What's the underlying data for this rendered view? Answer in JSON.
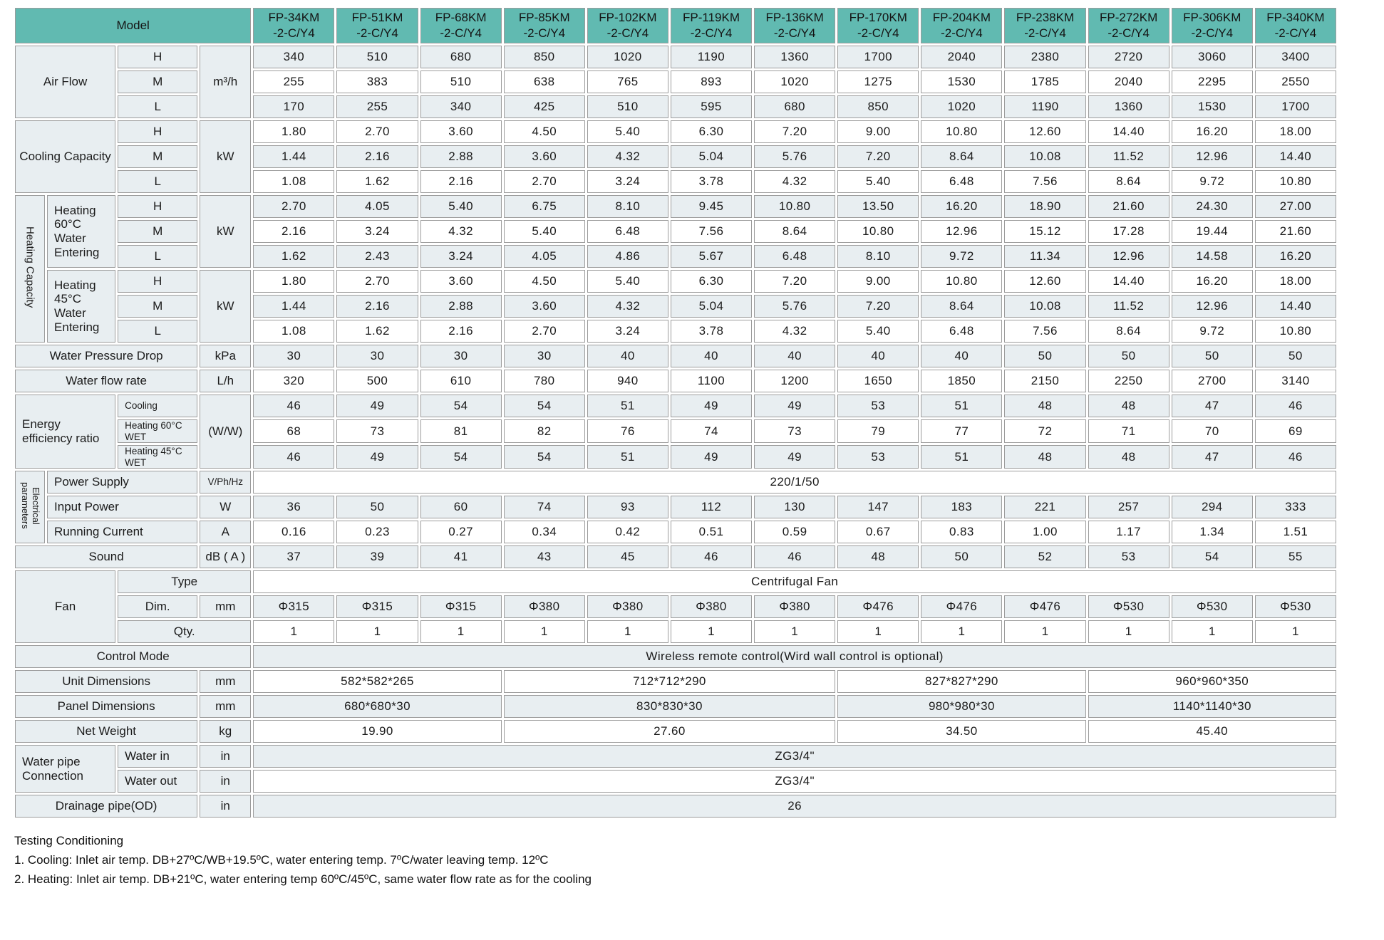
{
  "colors": {
    "header_teal": "#61bab1",
    "row_tint": "#e8eef1",
    "border_gray": "#9c9c9c"
  },
  "header": {
    "model_label": "Model",
    "models": [
      [
        "FP-34KM",
        "-2-C/Y4"
      ],
      [
        "FP-51KM",
        "-2-C/Y4"
      ],
      [
        "FP-68KM",
        "-2-C/Y4"
      ],
      [
        "FP-85KM",
        "-2-C/Y4"
      ],
      [
        "FP-102KM",
        "-2-C/Y4"
      ],
      [
        "FP-119KM",
        "-2-C/Y4"
      ],
      [
        "FP-136KM",
        "-2-C/Y4"
      ],
      [
        "FP-170KM",
        "-2-C/Y4"
      ],
      [
        "FP-204KM",
        "-2-C/Y4"
      ],
      [
        "FP-238KM",
        "-2-C/Y4"
      ],
      [
        "FP-272KM",
        "-2-C/Y4"
      ],
      [
        "FP-306KM",
        "-2-C/Y4"
      ],
      [
        "FP-340KM",
        "-2-C/Y4"
      ]
    ]
  },
  "rows": [
    {
      "name": "air-flow-h",
      "s": "a",
      "labels": [
        {
          "t": "Air Flow",
          "cs": 2,
          "rs": 3
        },
        {
          "t": "H"
        },
        {
          "t": "m³/h",
          "rs": 3
        }
      ],
      "values": [
        "340",
        "510",
        "680",
        "850",
        "1020",
        "1190",
        "1360",
        "1700",
        "2040",
        "2380",
        "2720",
        "3060",
        "3400"
      ]
    },
    {
      "name": "air-flow-m",
      "s": "b",
      "labels": [
        {
          "t": "M"
        }
      ],
      "values": [
        "255",
        "383",
        "510",
        "638",
        "765",
        "893",
        "1020",
        "1275",
        "1530",
        "1785",
        "2040",
        "2295",
        "2550"
      ]
    },
    {
      "name": "air-flow-l",
      "s": "a",
      "labels": [
        {
          "t": "L"
        }
      ],
      "values": [
        "170",
        "255",
        "340",
        "425",
        "510",
        "595",
        "680",
        "850",
        "1020",
        "1190",
        "1360",
        "1530",
        "1700"
      ]
    },
    {
      "name": "cooling-h",
      "s": "b",
      "labels": [
        {
          "t": "Cooling Capacity",
          "cs": 2,
          "rs": 3
        },
        {
          "t": "H"
        },
        {
          "t": "kW",
          "rs": 3
        }
      ],
      "values": [
        "1.80",
        "2.70",
        "3.60",
        "4.50",
        "5.40",
        "6.30",
        "7.20",
        "9.00",
        "10.80",
        "12.60",
        "14.40",
        "16.20",
        "18.00"
      ]
    },
    {
      "name": "cooling-m",
      "s": "a",
      "labels": [
        {
          "t": "M"
        }
      ],
      "values": [
        "1.44",
        "2.16",
        "2.88",
        "3.60",
        "4.32",
        "5.04",
        "5.76",
        "7.20",
        "8.64",
        "10.08",
        "11.52",
        "12.96",
        "14.40"
      ]
    },
    {
      "name": "cooling-l",
      "s": "b",
      "labels": [
        {
          "t": "L"
        }
      ],
      "values": [
        "1.08",
        "1.62",
        "2.16",
        "2.70",
        "3.24",
        "3.78",
        "4.32",
        "5.40",
        "6.48",
        "7.56",
        "8.64",
        "9.72",
        "10.80"
      ]
    },
    {
      "name": "heating60-h",
      "s": "a",
      "labels": [
        {
          "t": "Heating Capacity",
          "rs": 6,
          "c": "vertc"
        },
        {
          "t": "Heating 60°C Water Entering",
          "rs": 3,
          "c": "left"
        },
        {
          "t": "H"
        },
        {
          "t": "kW",
          "rs": 3
        }
      ],
      "values": [
        "2.70",
        "4.05",
        "5.40",
        "6.75",
        "8.10",
        "9.45",
        "10.80",
        "13.50",
        "16.20",
        "18.90",
        "21.60",
        "24.30",
        "27.00"
      ]
    },
    {
      "name": "heating60-m",
      "s": "b",
      "labels": [
        {
          "t": "M"
        }
      ],
      "values": [
        "2.16",
        "3.24",
        "4.32",
        "5.40",
        "6.48",
        "7.56",
        "8.64",
        "10.80",
        "12.96",
        "15.12",
        "17.28",
        "19.44",
        "21.60"
      ]
    },
    {
      "name": "heating60-l",
      "s": "a",
      "labels": [
        {
          "t": "L"
        }
      ],
      "values": [
        "1.62",
        "2.43",
        "3.24",
        "4.05",
        "4.86",
        "5.67",
        "6.48",
        "8.10",
        "9.72",
        "11.34",
        "12.96",
        "14.58",
        "16.20"
      ]
    },
    {
      "name": "heating45-h",
      "s": "b",
      "labels": [
        {
          "t": "Heating 45°C Water Entering",
          "rs": 3,
          "c": "left"
        },
        {
          "t": "H"
        },
        {
          "t": "kW",
          "rs": 3
        }
      ],
      "values": [
        "1.80",
        "2.70",
        "3.60",
        "4.50",
        "5.40",
        "6.30",
        "7.20",
        "9.00",
        "10.80",
        "12.60",
        "14.40",
        "16.20",
        "18.00"
      ]
    },
    {
      "name": "heating45-m",
      "s": "a",
      "labels": [
        {
          "t": "M"
        }
      ],
      "values": [
        "1.44",
        "2.16",
        "2.88",
        "3.60",
        "4.32",
        "5.04",
        "5.76",
        "7.20",
        "8.64",
        "10.08",
        "11.52",
        "12.96",
        "14.40"
      ]
    },
    {
      "name": "heating45-l",
      "s": "b",
      "labels": [
        {
          "t": "L"
        }
      ],
      "values": [
        "1.08",
        "1.62",
        "2.16",
        "2.70",
        "3.24",
        "3.78",
        "4.32",
        "5.40",
        "6.48",
        "7.56",
        "8.64",
        "9.72",
        "10.80"
      ]
    },
    {
      "name": "water-pressure-drop",
      "s": "a",
      "labels": [
        {
          "t": "Water Pressure Drop",
          "cs": 3
        },
        {
          "t": "kPa"
        }
      ],
      "values": [
        "30",
        "30",
        "30",
        "30",
        "40",
        "40",
        "40",
        "40",
        "40",
        "50",
        "50",
        "50",
        "50"
      ]
    },
    {
      "name": "water-flow-rate",
      "s": "b",
      "labels": [
        {
          "t": "Water flow rate",
          "cs": 3
        },
        {
          "t": "L/h"
        }
      ],
      "values": [
        "320",
        "500",
        "610",
        "780",
        "940",
        "1100",
        "1200",
        "1650",
        "1850",
        "2150",
        "2250",
        "2700",
        "3140"
      ]
    },
    {
      "name": "eer-cooling",
      "s": "a",
      "labels": [
        {
          "t": "Energy efficiency ratio",
          "cs": 2,
          "rs": 3,
          "c": "left"
        },
        {
          "t": "Cooling",
          "c": "small left"
        },
        {
          "t": "(W/W)",
          "rs": 3
        }
      ],
      "values": [
        "46",
        "49",
        "54",
        "54",
        "51",
        "49",
        "49",
        "53",
        "51",
        "48",
        "48",
        "47",
        "46"
      ]
    },
    {
      "name": "eer-heating60",
      "s": "b",
      "labels": [
        {
          "t": "Heating 60°C WET",
          "c": "small left"
        }
      ],
      "values": [
        "68",
        "73",
        "81",
        "82",
        "76",
        "74",
        "73",
        "79",
        "77",
        "72",
        "71",
        "70",
        "69"
      ]
    },
    {
      "name": "eer-heating45",
      "s": "a",
      "labels": [
        {
          "t": "Heating 45°C WET",
          "c": "small left"
        }
      ],
      "values": [
        "46",
        "49",
        "54",
        "54",
        "51",
        "49",
        "49",
        "53",
        "51",
        "48",
        "48",
        "47",
        "46"
      ]
    },
    {
      "name": "power-supply",
      "s": "b",
      "labels": [
        {
          "t": "Electrical parameters",
          "rs": 3,
          "c": "vertc ep"
        },
        {
          "t": "Power Supply",
          "cs": 2,
          "c": "left"
        },
        {
          "t": "V/Ph/Hz",
          "c": "small"
        }
      ],
      "values": [
        {
          "t": "220/1/50",
          "cs": 13
        }
      ]
    },
    {
      "name": "input-power",
      "s": "a",
      "labels": [
        {
          "t": "Input Power",
          "cs": 2,
          "c": "left"
        },
        {
          "t": "W"
        }
      ],
      "values": [
        "36",
        "50",
        "60",
        "74",
        "93",
        "112",
        "130",
        "147",
        "183",
        "221",
        "257",
        "294",
        "333"
      ]
    },
    {
      "name": "running-current",
      "s": "b",
      "labels": [
        {
          "t": "Running Current",
          "cs": 2,
          "c": "left"
        },
        {
          "t": "A"
        }
      ],
      "values": [
        "0.16",
        "0.23",
        "0.27",
        "0.34",
        "0.42",
        "0.51",
        "0.59",
        "0.67",
        "0.83",
        "1.00",
        "1.17",
        "1.34",
        "1.51"
      ]
    },
    {
      "name": "sound",
      "s": "a",
      "labels": [
        {
          "t": "Sound",
          "cs": 3
        },
        {
          "t": "dB ( A )"
        }
      ],
      "values": [
        "37",
        "39",
        "41",
        "43",
        "45",
        "46",
        "46",
        "48",
        "50",
        "52",
        "53",
        "54",
        "55"
      ]
    },
    {
      "name": "fan-type",
      "s": "b",
      "labels": [
        {
          "t": "Fan",
          "cs": 2,
          "rs": 3
        },
        {
          "t": "Type",
          "cs": 2
        }
      ],
      "values": [
        {
          "t": "Centrifugal Fan",
          "cs": 13
        }
      ]
    },
    {
      "name": "fan-dim",
      "s": "a",
      "labels": [
        {
          "t": "Dim."
        },
        {
          "t": "mm"
        }
      ],
      "values": [
        "Φ315",
        "Φ315",
        "Φ315",
        "Φ380",
        "Φ380",
        "Φ380",
        "Φ380",
        "Φ476",
        "Φ476",
        "Φ476",
        "Φ530",
        "Φ530",
        "Φ530"
      ]
    },
    {
      "name": "fan-qty",
      "s": "b",
      "labels": [
        {
          "t": "Qty.",
          "cs": 2
        }
      ],
      "values": [
        "1",
        "1",
        "1",
        "1",
        "1",
        "1",
        "1",
        "1",
        "1",
        "1",
        "1",
        "1",
        "1"
      ]
    },
    {
      "name": "control-mode",
      "s": "a",
      "labels": [
        {
          "t": "Control Mode",
          "cs": 4
        }
      ],
      "values": [
        {
          "t": "Wireless remote control(Wird wall control is optional)",
          "cs": 13
        }
      ]
    },
    {
      "name": "unit-dimensions",
      "s": "b",
      "labels": [
        {
          "t": "Unit Dimensions",
          "cs": 3
        },
        {
          "t": "mm"
        }
      ],
      "values": [
        {
          "t": "582*582*265",
          "cs": 3
        },
        {
          "t": "712*712*290",
          "cs": 4
        },
        {
          "t": "827*827*290",
          "cs": 3
        },
        {
          "t": "960*960*350",
          "cs": 3
        }
      ]
    },
    {
      "name": "panel-dimensions",
      "s": "a",
      "labels": [
        {
          "t": "Panel Dimensions",
          "cs": 3
        },
        {
          "t": "mm"
        }
      ],
      "values": [
        {
          "t": "680*680*30",
          "cs": 3
        },
        {
          "t": "830*830*30",
          "cs": 4
        },
        {
          "t": "980*980*30",
          "cs": 3
        },
        {
          "t": "1140*1140*30",
          "cs": 3
        }
      ]
    },
    {
      "name": "net-weight",
      "s": "b",
      "labels": [
        {
          "t": "Net Weight",
          "cs": 3
        },
        {
          "t": "kg"
        }
      ],
      "values": [
        {
          "t": "19.90",
          "cs": 3
        },
        {
          "t": "27.60",
          "cs": 4
        },
        {
          "t": "34.50",
          "cs": 3
        },
        {
          "t": "45.40",
          "cs": 3
        }
      ]
    },
    {
      "name": "water-in",
      "s": "a",
      "labels": [
        {
          "t": "Water pipe Connection",
          "cs": 2,
          "rs": 2,
          "c": "left"
        },
        {
          "t": "Water in",
          "c": "left"
        },
        {
          "t": "in"
        }
      ],
      "values": [
        {
          "t": "ZG3/4\"",
          "cs": 13
        }
      ]
    },
    {
      "name": "water-out",
      "s": "b",
      "labels": [
        {
          "t": "Water out",
          "c": "left"
        },
        {
          "t": "in"
        }
      ],
      "values": [
        {
          "t": "ZG3/4\"",
          "cs": 13
        }
      ]
    },
    {
      "name": "drainage-pipe",
      "s": "a",
      "labels": [
        {
          "t": "Drainage pipe(OD)",
          "cs": 3
        },
        {
          "t": "in"
        }
      ],
      "values": [
        {
          "t": "26",
          "cs": 13
        }
      ]
    }
  ],
  "notes": {
    "title": "Testing Conditioning",
    "line1": "1. Cooling: Inlet air temp. DB+27ºC/WB+19.5ºC, water entering temp. 7ºC/water leaving temp. 12ºC",
    "line2": "2. Heating: Inlet air temp. DB+21ºC, water entering temp 60ºC/45ºC, same water flow rate as for the cooling"
  }
}
